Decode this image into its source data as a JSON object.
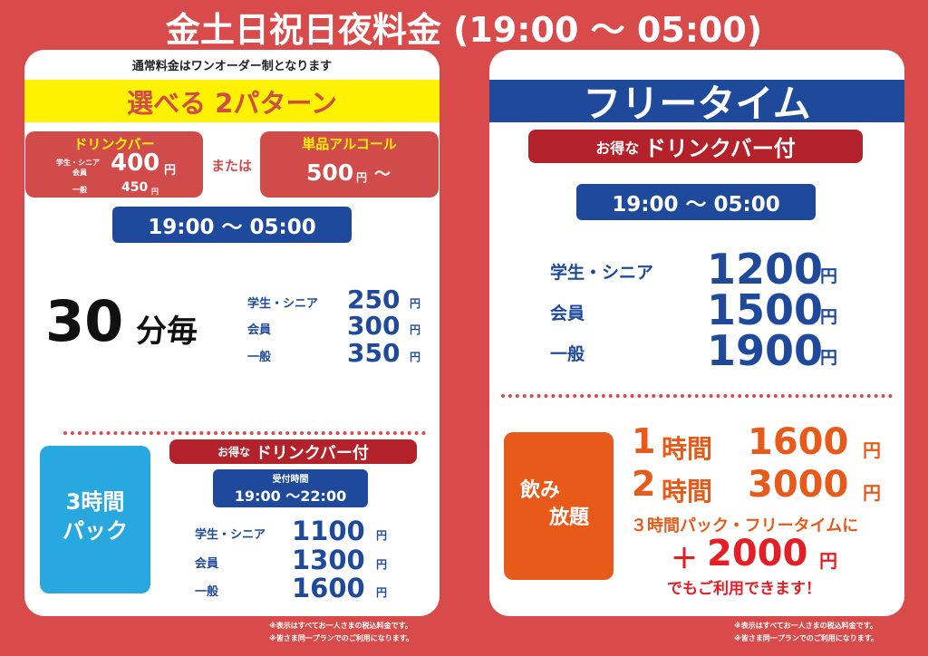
{
  "title": "金土日祝日夜料金 (19:00 ～ 05:00)",
  "left": {
    "note": "通常料金はワンオーダー制となります",
    "banner": "選べる 2パターン",
    "drinkbar": {
      "title": "ドリンクバー",
      "label1": "学生・シニア",
      "label2": "会員",
      "price1": "400",
      "yen": "円",
      "label3": "一般",
      "price3": "450"
    },
    "or": "または",
    "alcohol": {
      "title": "単品アルコール",
      "price": "500",
      "yen": "円",
      "suffix": "～"
    },
    "time": "19:00 ～ 05:00",
    "per30": {
      "title": "30",
      "unit": "分毎",
      "rows": [
        {
          "label": "学生・シニア",
          "price": "250",
          "yen": "円"
        },
        {
          "label": "会員",
          "price": "300",
          "yen": "円"
        },
        {
          "label": "一般",
          "price": "350",
          "yen": "円"
        }
      ]
    },
    "pack": {
      "title1": "3時間",
      "title2": "パック",
      "banner_small": "お得な",
      "banner_big": "ドリンクバー付",
      "reception": "受付時間",
      "time": "19:00 ～22:00",
      "rows": [
        {
          "label": "学生・シニア",
          "price": "1100",
          "yen": "円"
        },
        {
          "label": "会員",
          "price": "1300",
          "yen": "円"
        },
        {
          "label": "一般",
          "price": "1600",
          "yen": "円"
        }
      ]
    }
  },
  "right": {
    "header": "フリータイム",
    "banner_small": "お得な",
    "banner_big": "ドリンクバー付",
    "time": "19:00 ～ 05:00",
    "rows": [
      {
        "label": "学生・シニア",
        "price": "1200",
        "yen": "円"
      },
      {
        "label": "会員",
        "price": "1500",
        "yen": "円"
      },
      {
        "label": "一般",
        "price": "1900",
        "yen": "円"
      }
    ],
    "nomihodai": {
      "title1": "飲み",
      "title2": "放題",
      "rows": [
        {
          "hours": "1",
          "unit": "時間",
          "price": "1600",
          "yen": "円"
        },
        {
          "hours": "2",
          "unit": "時間",
          "price": "3000",
          "yen": "円"
        }
      ],
      "addon_text": "３時間パック・フリータイムに",
      "plus": "＋",
      "addon_price": "2000",
      "yen": "円",
      "closing": "でもご利用できます！"
    }
  },
  "footnotes": [
    "※表示はすべてお一人さまの税込料金です。",
    "※皆さま同一プランでのご利用になります。"
  ],
  "colors": {
    "background": "#d94a4a",
    "blue": "#1f4a9c",
    "yellow": "#fff200",
    "orange": "#e85a1a",
    "sky": "#29a8e0",
    "dark_red": "#b3222a"
  }
}
